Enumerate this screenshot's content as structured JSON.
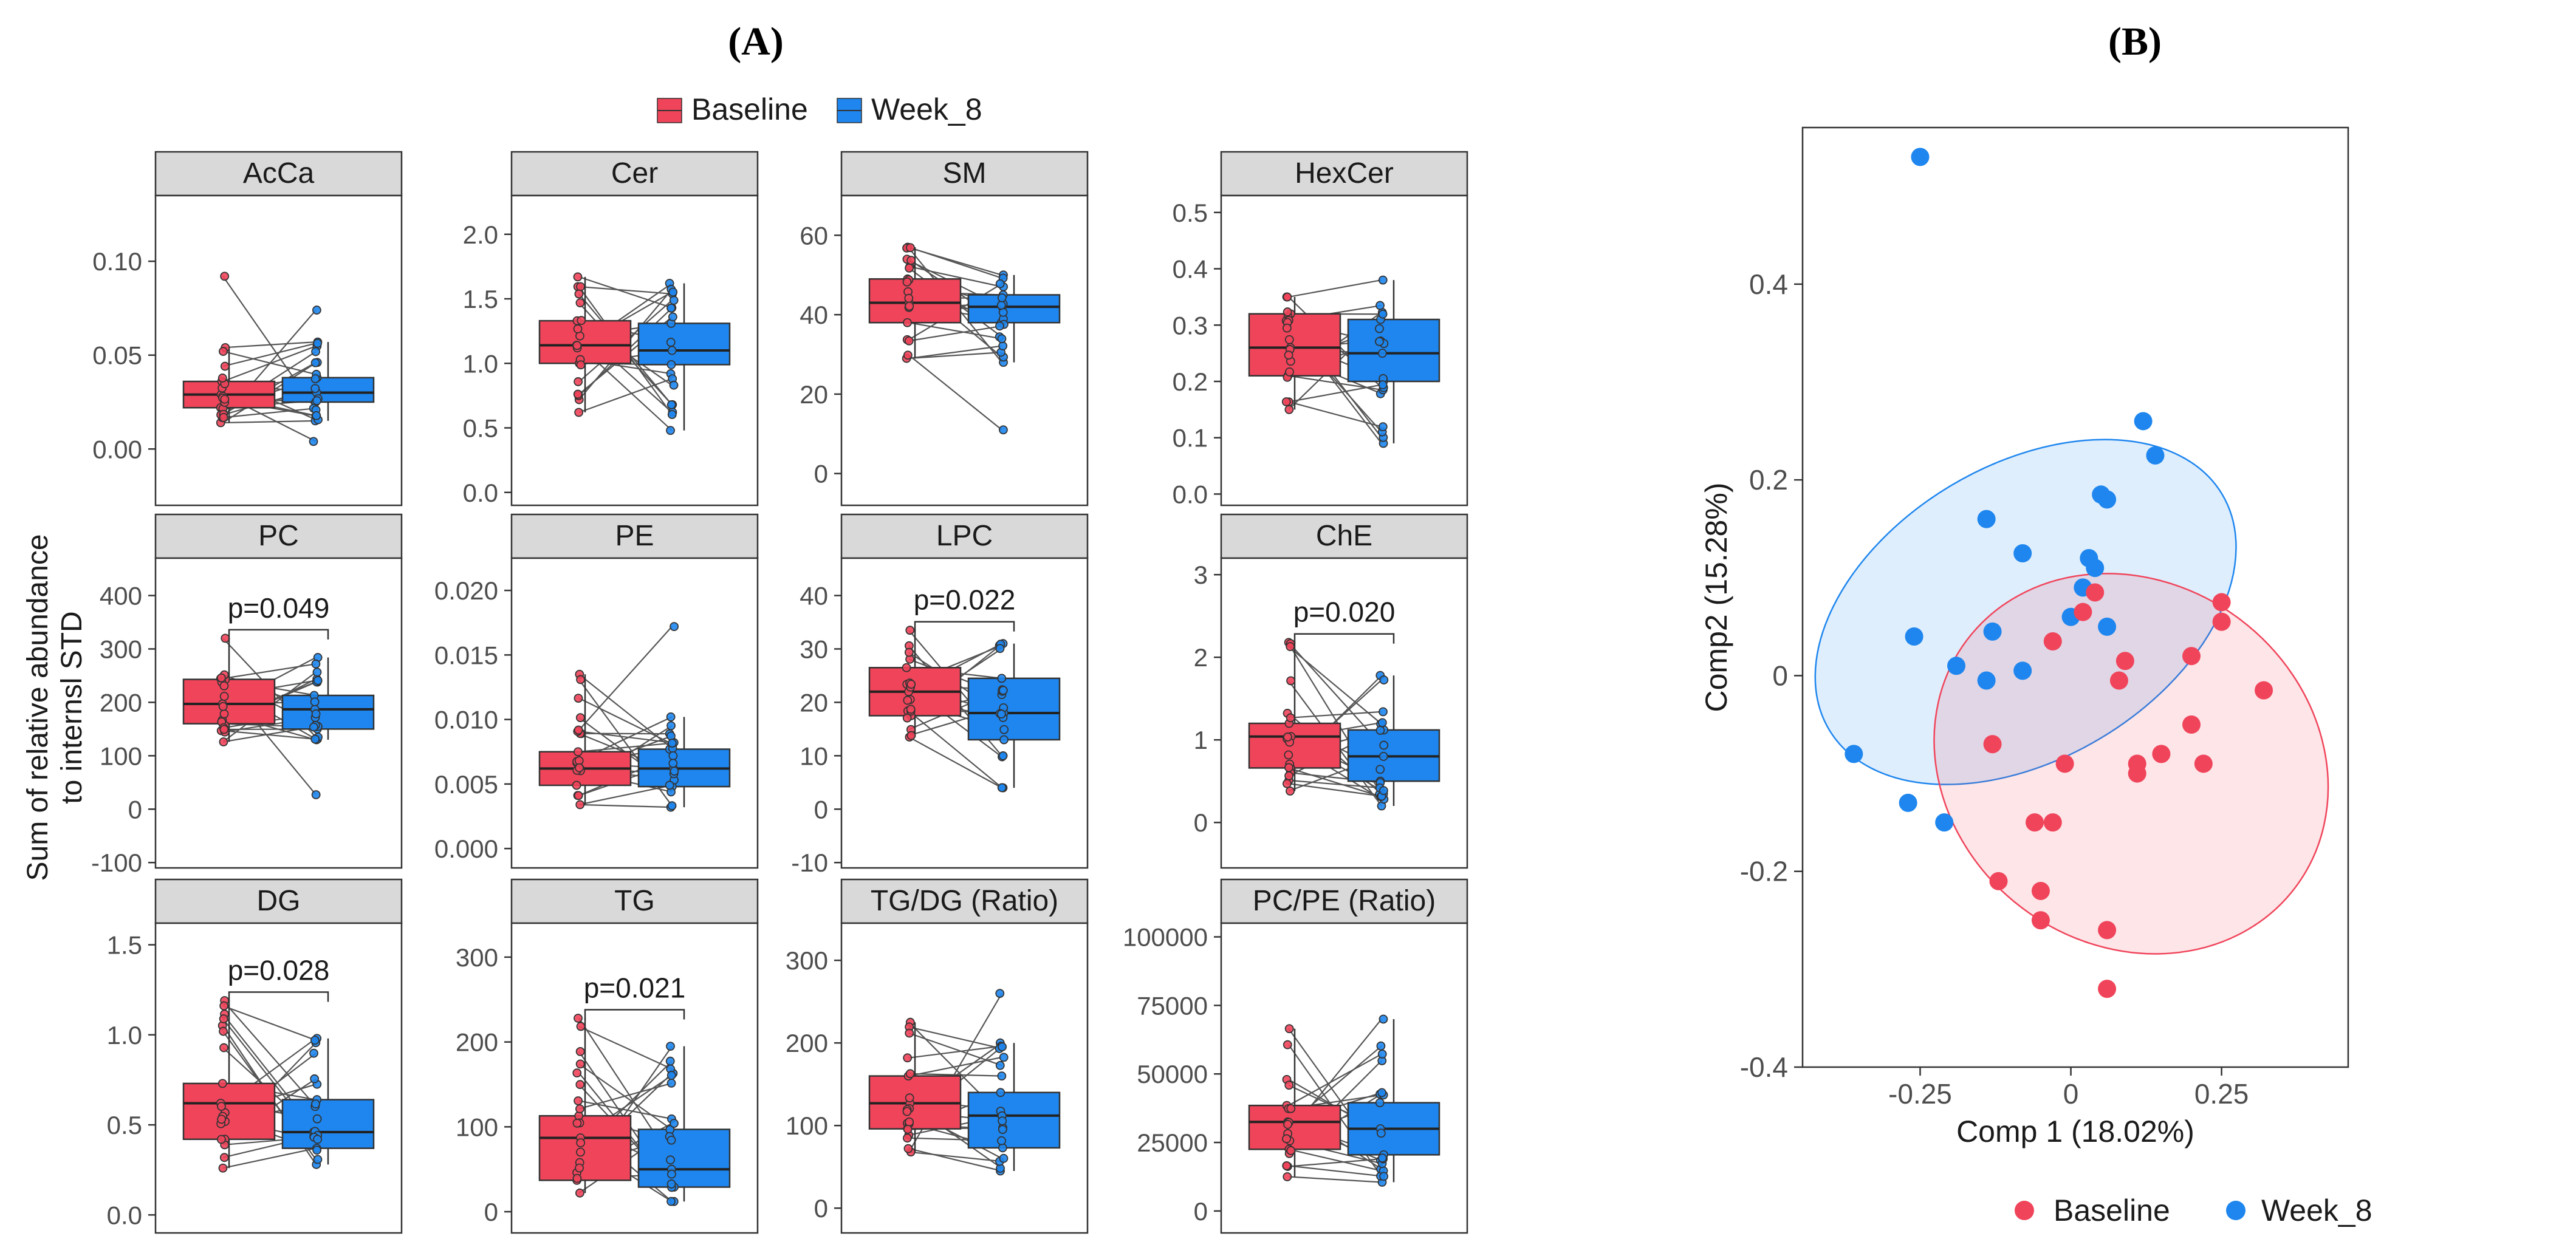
{
  "figure": {
    "panel_a_label": "(A)",
    "panel_b_label": "(B)",
    "legend_a": [
      "Baseline",
      "Week_8"
    ],
    "y_axis_label_line1": "Sum of relative abundance",
    "y_axis_label_line2": "to internsl STD",
    "colors": {
      "baseline": "#f0445a",
      "week8": "#1e86ee",
      "strip": "#d9d9d9"
    }
  },
  "chart_data": [
    {
      "type": "box",
      "panel": "A",
      "groups": [
        "Baseline",
        "Week_8"
      ],
      "facets": [
        {
          "title": "AcCa",
          "ylim": [
            -0.03,
            0.135
          ],
          "ticks": [
            0.0,
            0.05,
            0.1
          ],
          "tick_labels": [
            "0.00",
            "0.05",
            "0.10"
          ],
          "baseline": {
            "q1": 0.022,
            "median": 0.029,
            "q3": 0.036,
            "min": 0.014,
            "max": 0.054,
            "outliers": [
              0.092
            ]
          },
          "week8": {
            "q1": 0.025,
            "median": 0.03,
            "q3": 0.038,
            "min": 0.015,
            "max": 0.057,
            "outliers": [
              0.074,
              0.004
            ]
          },
          "p": null
        },
        {
          "title": "Cer",
          "ylim": [
            -0.1,
            2.3
          ],
          "ticks": [
            0.0,
            0.5,
            1.0,
            1.5,
            2.0
          ],
          "tick_labels": [
            "0.0",
            "0.5",
            "1.0",
            "1.5",
            "2.0"
          ],
          "baseline": {
            "q1": 1.0,
            "median": 1.14,
            "q3": 1.33,
            "min": 0.62,
            "max": 1.67,
            "outliers": []
          },
          "week8": {
            "q1": 0.99,
            "median": 1.1,
            "q3": 1.31,
            "min": 0.48,
            "max": 1.62,
            "outliers": []
          },
          "p": null
        },
        {
          "title": "SM",
          "ylim": [
            -8,
            70
          ],
          "ticks": [
            0,
            20,
            40,
            60
          ],
          "tick_labels": [
            "0",
            "20",
            "40",
            "60"
          ],
          "baseline": {
            "q1": 38,
            "median": 43,
            "q3": 49,
            "min": 29,
            "max": 57,
            "outliers": []
          },
          "week8": {
            "q1": 38,
            "median": 42,
            "q3": 45,
            "min": 28,
            "max": 50,
            "outliers": [
              11
            ]
          },
          "p": null
        },
        {
          "title": "HexCer",
          "ylim": [
            -0.02,
            0.53
          ],
          "ticks": [
            0.0,
            0.1,
            0.2,
            0.3,
            0.4,
            0.5
          ],
          "tick_labels": [
            "0.0",
            "0.1",
            "0.2",
            "0.3",
            "0.4",
            "0.5"
          ],
          "baseline": {
            "q1": 0.21,
            "median": 0.26,
            "q3": 0.32,
            "min": 0.15,
            "max": 0.35,
            "outliers": []
          },
          "week8": {
            "q1": 0.2,
            "median": 0.25,
            "q3": 0.31,
            "min": 0.09,
            "max": 0.38,
            "outliers": []
          },
          "p": null
        },
        {
          "title": "PC",
          "ylim": [
            -110,
            470
          ],
          "ticks": [
            -100,
            0,
            100,
            200,
            300,
            400
          ],
          "tick_labels": [
            "-100",
            "0",
            "100",
            "200",
            "300",
            "400"
          ],
          "baseline": {
            "q1": 160,
            "median": 197,
            "q3": 243,
            "min": 126,
            "max": 320,
            "outliers": []
          },
          "week8": {
            "q1": 150,
            "median": 187,
            "q3": 213,
            "min": 130,
            "max": 284,
            "outliers": [
              27
            ]
          },
          "p": "p=0.049"
        },
        {
          "title": "PE",
          "ylim": [
            -0.0015,
            0.0225
          ],
          "ticks": [
            0.0,
            0.005,
            0.01,
            0.015,
            0.02
          ],
          "tick_labels": [
            "0.000",
            "0.005",
            "0.010",
            "0.015",
            "0.020"
          ],
          "baseline": {
            "q1": 0.0049,
            "median": 0.0062,
            "q3": 0.0075,
            "min": 0.0034,
            "max": 0.0135,
            "outliers": []
          },
          "week8": {
            "q1": 0.0048,
            "median": 0.0062,
            "q3": 0.0077,
            "min": 0.0032,
            "max": 0.0102,
            "outliers": [
              0.0172
            ]
          },
          "p": null
        },
        {
          "title": "LPC",
          "ylim": [
            -11,
            47
          ],
          "ticks": [
            -10,
            0,
            10,
            20,
            30,
            40
          ],
          "tick_labels": [
            "-10",
            "0",
            "10",
            "20",
            "30",
            "40"
          ],
          "baseline": {
            "q1": 17.5,
            "median": 22.0,
            "q3": 26.5,
            "min": 13.5,
            "max": 33.5,
            "outliers": []
          },
          "week8": {
            "q1": 13.0,
            "median": 18.0,
            "q3": 24.5,
            "min": 4.0,
            "max": 31.0,
            "outliers": []
          },
          "p": "p=0.022"
        },
        {
          "title": "ChE",
          "ylim": [
            -0.55,
            3.2
          ],
          "ticks": [
            0,
            1,
            2,
            3
          ],
          "tick_labels": [
            "0",
            "1",
            "2",
            "3"
          ],
          "baseline": {
            "q1": 0.66,
            "median": 1.04,
            "q3": 1.2,
            "min": 0.38,
            "max": 2.18,
            "outliers": []
          },
          "week8": {
            "q1": 0.5,
            "median": 0.8,
            "q3": 1.12,
            "min": 0.2,
            "max": 1.78,
            "outliers": []
          },
          "p": "p=0.020"
        },
        {
          "title": "DG",
          "ylim": [
            -0.1,
            1.62
          ],
          "ticks": [
            0.0,
            0.5,
            1.0,
            1.5
          ],
          "tick_labels": [
            "0.0",
            "0.5",
            "1.0",
            "1.5"
          ],
          "baseline": {
            "q1": 0.42,
            "median": 0.62,
            "q3": 0.73,
            "min": 0.26,
            "max": 1.19,
            "outliers": []
          },
          "week8": {
            "q1": 0.37,
            "median": 0.46,
            "q3": 0.64,
            "min": 0.28,
            "max": 0.98,
            "outliers": []
          },
          "p": "p=0.028"
        },
        {
          "title": "TG",
          "ylim": [
            -25,
            340
          ],
          "ticks": [
            0,
            100,
            200,
            300
          ],
          "tick_labels": [
            "0",
            "100",
            "200",
            "300"
          ],
          "baseline": {
            "q1": 37,
            "median": 87,
            "q3": 113,
            "min": 22,
            "max": 228,
            "outliers": []
          },
          "week8": {
            "q1": 29,
            "median": 50,
            "q3": 97,
            "min": 12,
            "max": 195,
            "outliers": []
          },
          "p": "p=0.021"
        },
        {
          "title": "TG/DG (Ratio)",
          "ylim": [
            -30,
            345
          ],
          "ticks": [
            0,
            100,
            200,
            300
          ],
          "tick_labels": [
            "0",
            "100",
            "200",
            "300"
          ],
          "baseline": {
            "q1": 96,
            "median": 127,
            "q3": 160,
            "min": 68,
            "max": 225,
            "outliers": []
          },
          "week8": {
            "q1": 73,
            "median": 112,
            "q3": 140,
            "min": 45,
            "max": 200,
            "outliers": [
              260
            ]
          },
          "p": null
        },
        {
          "title": "PC/PE (Ratio)",
          "ylim": [
            -8000,
            105000
          ],
          "ticks": [
            0,
            25000,
            50000,
            75000,
            100000
          ],
          "tick_labels": [
            "0",
            "25000",
            "50000",
            "75000",
            "100000"
          ],
          "baseline": {
            "q1": 22500,
            "median": 32500,
            "q3": 38500,
            "min": 12500,
            "max": 66500,
            "outliers": []
          },
          "week8": {
            "q1": 20500,
            "median": 30000,
            "q3": 39500,
            "min": 10500,
            "max": 70000,
            "outliers": []
          },
          "p": null
        }
      ]
    },
    {
      "type": "scatter",
      "panel": "B",
      "xlabel": "Comp 1 (18.02%)",
      "ylabel": "Comp2 (15.28%)",
      "xlim": [
        -0.445,
        0.46
      ],
      "ylim": [
        -0.4,
        0.56
      ],
      "xticks": [
        -0.25,
        0,
        0.25
      ],
      "xtick_labels": [
        "-0.25",
        "0",
        "0.25"
      ],
      "yticks": [
        -0.4,
        -0.2,
        0,
        0.2,
        0.4
      ],
      "ytick_labels": [
        "-0.4",
        "-0.2",
        "0",
        "0.2",
        "0.4"
      ],
      "legend": [
        "Baseline",
        "Week_8"
      ],
      "series": [
        {
          "name": "Week_8",
          "x": [
            -0.25,
            -0.36,
            -0.27,
            -0.21,
            -0.26,
            -0.19,
            -0.14,
            -0.14,
            -0.13,
            -0.08,
            -0.08,
            0.0,
            0.02,
            0.03,
            0.04,
            0.06,
            0.05,
            0.06,
            0.12,
            0.14
          ],
          "y": [
            0.53,
            -0.08,
            -0.13,
            -0.15,
            0.04,
            0.01,
            0.16,
            -0.005,
            0.045,
            0.125,
            0.005,
            0.06,
            0.09,
            0.12,
            0.11,
            0.05,
            0.185,
            0.18,
            0.26,
            0.225
          ]
        },
        {
          "name": "Baseline",
          "x": [
            -0.13,
            -0.12,
            -0.06,
            -0.05,
            -0.05,
            -0.03,
            -0.03,
            -0.01,
            0.02,
            0.04,
            0.06,
            0.06,
            0.08,
            0.09,
            0.11,
            0.11,
            0.15,
            0.2,
            0.2,
            0.22,
            0.25,
            0.25,
            0.32
          ],
          "y": [
            -0.07,
            -0.21,
            -0.15,
            -0.22,
            -0.25,
            -0.15,
            0.035,
            -0.09,
            0.065,
            0.085,
            -0.26,
            -0.32,
            -0.005,
            0.015,
            -0.09,
            -0.1,
            -0.08,
            0.02,
            -0.05,
            -0.09,
            0.075,
            0.055,
            -0.015
          ]
        }
      ],
      "ellipses": [
        {
          "group": "Week_8",
          "cx": -0.075,
          "cy": 0.065,
          "rx": 0.38,
          "ry": 0.15,
          "angle_deg": 31
        },
        {
          "group": "Baseline",
          "cx": 0.1,
          "cy": -0.09,
          "rx": 0.3,
          "ry": 0.21,
          "angle_deg": 53
        }
      ]
    }
  ]
}
